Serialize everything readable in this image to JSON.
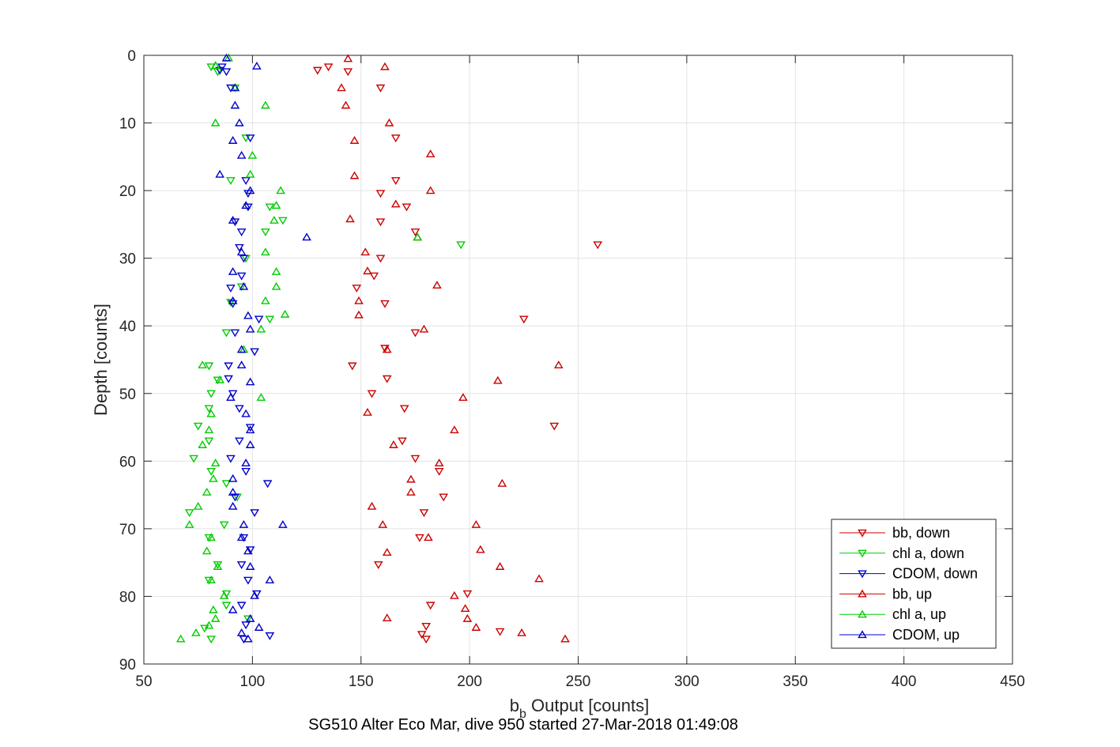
{
  "chart_data": {
    "type": "scatter",
    "xlabel_main": "b",
    "xlabel_sub": "b",
    "xlabel_rest": " Output [counts]",
    "ylabel": "Depth [counts]",
    "footer": "SG510 Alter Eco Mar, dive 950 started 27-Mar-2018 01:49:08",
    "xlim": [
      50,
      450
    ],
    "ylim": [
      0,
      90
    ],
    "y_reversed": true,
    "grid": true,
    "legend_position": "bottom-right",
    "xticks": [
      50,
      100,
      150,
      200,
      250,
      300,
      350,
      400,
      450
    ],
    "yticks": [
      0,
      10,
      20,
      30,
      40,
      50,
      60,
      70,
      80,
      90
    ],
    "series": [
      {
        "name": "bb, down",
        "color": "#cc0000",
        "marker": "triangle-down",
        "points": [
          [
            135,
            1.7
          ],
          [
            130,
            2.2
          ],
          [
            144,
            2.4
          ],
          [
            159,
            4.8
          ],
          [
            166,
            12.2
          ],
          [
            166,
            18.5
          ],
          [
            159,
            20.4
          ],
          [
            171,
            22.4
          ],
          [
            159,
            24.6
          ],
          [
            175,
            26.1
          ],
          [
            259,
            28.0
          ],
          [
            159,
            30.0
          ],
          [
            156,
            32.6
          ],
          [
            148,
            34.4
          ],
          [
            161,
            36.7
          ],
          [
            225,
            39.0
          ],
          [
            175,
            41.0
          ],
          [
            161,
            43.3
          ],
          [
            146,
            45.9
          ],
          [
            162,
            47.8
          ],
          [
            155,
            50.0
          ],
          [
            170,
            52.2
          ],
          [
            239,
            54.8
          ],
          [
            169,
            57.0
          ],
          [
            175,
            59.6
          ],
          [
            186,
            61.5
          ],
          [
            188,
            65.3
          ],
          [
            179,
            67.6
          ],
          [
            177,
            71.3
          ],
          [
            158,
            75.3
          ],
          [
            199,
            79.6
          ],
          [
            182,
            81.3
          ],
          [
            180,
            84.4
          ],
          [
            178,
            85.6
          ],
          [
            214,
            85.2
          ],
          [
            180,
            86.3
          ]
        ]
      },
      {
        "name": "chl a, down",
        "color": "#00cc00",
        "marker": "triangle-down",
        "points": [
          [
            81,
            1.7
          ],
          [
            84,
            2.4
          ],
          [
            92,
            4.8
          ],
          [
            97,
            12.2
          ],
          [
            90,
            18.5
          ],
          [
            108,
            22.4
          ],
          [
            114,
            24.4
          ],
          [
            106,
            26.1
          ],
          [
            196,
            28.0
          ],
          [
            97,
            30.0
          ],
          [
            95,
            34.2
          ],
          [
            90,
            36.5
          ],
          [
            108,
            39.0
          ],
          [
            88,
            41.0
          ],
          [
            80,
            45.9
          ],
          [
            84,
            48.0
          ],
          [
            81,
            50.0
          ],
          [
            80,
            52.2
          ],
          [
            75,
            54.8
          ],
          [
            80,
            57.0
          ],
          [
            73,
            59.6
          ],
          [
            81,
            61.5
          ],
          [
            88,
            63.3
          ],
          [
            93,
            65.3
          ],
          [
            71,
            67.6
          ],
          [
            87,
            69.4
          ],
          [
            80,
            71.3
          ],
          [
            84,
            75.3
          ],
          [
            80,
            77.6
          ],
          [
            88,
            79.6
          ],
          [
            88,
            81.3
          ],
          [
            78,
            84.7
          ],
          [
            98,
            83.3
          ],
          [
            81,
            86.3
          ]
        ]
      },
      {
        "name": "CDOM, down",
        "color": "#0000cc",
        "marker": "triangle-down",
        "points": [
          [
            86,
            1.7
          ],
          [
            85,
            2.2
          ],
          [
            88,
            2.4
          ],
          [
            90,
            4.8
          ],
          [
            99,
            12.2
          ],
          [
            97,
            18.5
          ],
          [
            98,
            20.4
          ],
          [
            98,
            22.4
          ],
          [
            92,
            24.6
          ],
          [
            95,
            26.1
          ],
          [
            94,
            28.4
          ],
          [
            96,
            30.0
          ],
          [
            95,
            32.6
          ],
          [
            90,
            34.4
          ],
          [
            91,
            36.7
          ],
          [
            103,
            39.0
          ],
          [
            92,
            41.0
          ],
          [
            101,
            43.8
          ],
          [
            89,
            45.9
          ],
          [
            89,
            47.8
          ],
          [
            91,
            50.0
          ],
          [
            94,
            52.2
          ],
          [
            99,
            55.0
          ],
          [
            94,
            57.0
          ],
          [
            90,
            59.6
          ],
          [
            97,
            61.5
          ],
          [
            107,
            63.3
          ],
          [
            92,
            65.3
          ],
          [
            101,
            67.6
          ],
          [
            96,
            71.3
          ],
          [
            99,
            73.1
          ],
          [
            95,
            75.3
          ],
          [
            98,
            77.6
          ],
          [
            102,
            79.6
          ],
          [
            95,
            81.3
          ],
          [
            97,
            84.2
          ],
          [
            108,
            85.8
          ],
          [
            96,
            86.3
          ]
        ]
      },
      {
        "name": "bb, up",
        "color": "#cc0000",
        "marker": "triangle-up",
        "points": [
          [
            144,
            0.5
          ],
          [
            161,
            1.7
          ],
          [
            141,
            4.8
          ],
          [
            143,
            7.4
          ],
          [
            163,
            10.0
          ],
          [
            147,
            12.6
          ],
          [
            182,
            14.6
          ],
          [
            147,
            17.8
          ],
          [
            182,
            20.0
          ],
          [
            166,
            22.0
          ],
          [
            145,
            24.2
          ],
          [
            176,
            26.9
          ],
          [
            152,
            29.1
          ],
          [
            153,
            31.9
          ],
          [
            185,
            34.0
          ],
          [
            149,
            36.3
          ],
          [
            149,
            38.4
          ],
          [
            179,
            40.5
          ],
          [
            162,
            43.5
          ],
          [
            241,
            45.8
          ],
          [
            213,
            48.1
          ],
          [
            197,
            50.6
          ],
          [
            153,
            52.8
          ],
          [
            193,
            55.4
          ],
          [
            165,
            57.6
          ],
          [
            186,
            60.3
          ],
          [
            173,
            62.7
          ],
          [
            215,
            63.3
          ],
          [
            173,
            64.6
          ],
          [
            155,
            66.7
          ],
          [
            203,
            69.4
          ],
          [
            160,
            69.4
          ],
          [
            181,
            71.3
          ],
          [
            205,
            73.1
          ],
          [
            162,
            73.5
          ],
          [
            214,
            75.6
          ],
          [
            232,
            77.4
          ],
          [
            193,
            79.9
          ],
          [
            198,
            81.8
          ],
          [
            199,
            83.3
          ],
          [
            203,
            84.6
          ],
          [
            162,
            83.2
          ],
          [
            224,
            85.4
          ],
          [
            244,
            86.3
          ]
        ]
      },
      {
        "name": "chl a, up",
        "color": "#00cc00",
        "marker": "triangle-up",
        "points": [
          [
            89,
            0.4
          ],
          [
            83,
            1.5
          ],
          [
            92,
            4.8
          ],
          [
            106,
            7.4
          ],
          [
            83,
            10.0
          ],
          [
            100,
            14.8
          ],
          [
            99,
            17.6
          ],
          [
            113,
            20.0
          ],
          [
            111,
            22.2
          ],
          [
            110,
            24.4
          ],
          [
            176,
            26.9
          ],
          [
            106,
            29.1
          ],
          [
            111,
            32.0
          ],
          [
            111,
            34.2
          ],
          [
            106,
            36.3
          ],
          [
            115,
            38.3
          ],
          [
            104,
            40.5
          ],
          [
            96,
            43.5
          ],
          [
            77,
            45.8
          ],
          [
            85,
            48.0
          ],
          [
            104,
            50.6
          ],
          [
            81,
            53.0
          ],
          [
            80,
            55.4
          ],
          [
            77,
            57.6
          ],
          [
            83,
            60.3
          ],
          [
            82,
            62.6
          ],
          [
            79,
            64.6
          ],
          [
            75,
            66.7
          ],
          [
            71,
            69.4
          ],
          [
            81,
            71.3
          ],
          [
            79,
            73.3
          ],
          [
            84,
            75.6
          ],
          [
            81,
            77.6
          ],
          [
            87,
            79.9
          ],
          [
            82,
            82.0
          ],
          [
            83,
            83.3
          ],
          [
            80,
            84.3
          ],
          [
            74,
            85.4
          ],
          [
            67,
            86.3
          ]
        ]
      },
      {
        "name": "CDOM, up",
        "color": "#0000cc",
        "marker": "triangle-up",
        "points": [
          [
            88,
            0.4
          ],
          [
            102,
            1.6
          ],
          [
            92,
            4.8
          ],
          [
            92,
            7.4
          ],
          [
            94,
            10.0
          ],
          [
            91,
            12.6
          ],
          [
            95,
            14.8
          ],
          [
            85,
            17.6
          ],
          [
            99,
            20.0
          ],
          [
            97,
            22.2
          ],
          [
            91,
            24.4
          ],
          [
            125,
            26.9
          ],
          [
            95,
            29.1
          ],
          [
            91,
            32.0
          ],
          [
            96,
            34.2
          ],
          [
            91,
            36.3
          ],
          [
            98,
            38.5
          ],
          [
            99,
            40.5
          ],
          [
            95,
            43.5
          ],
          [
            95,
            45.8
          ],
          [
            99,
            48.3
          ],
          [
            90,
            50.6
          ],
          [
            97,
            53.0
          ],
          [
            99,
            55.4
          ],
          [
            99,
            57.6
          ],
          [
            97,
            60.3
          ],
          [
            91,
            62.6
          ],
          [
            91,
            64.6
          ],
          [
            91,
            66.7
          ],
          [
            114,
            69.4
          ],
          [
            96,
            69.4
          ],
          [
            95,
            71.3
          ],
          [
            98,
            73.3
          ],
          [
            99,
            75.6
          ],
          [
            108,
            77.6
          ],
          [
            101,
            79.9
          ],
          [
            91,
            82.0
          ],
          [
            99,
            83.3
          ],
          [
            103,
            84.6
          ],
          [
            95,
            85.4
          ],
          [
            98,
            86.3
          ]
        ]
      }
    ]
  }
}
